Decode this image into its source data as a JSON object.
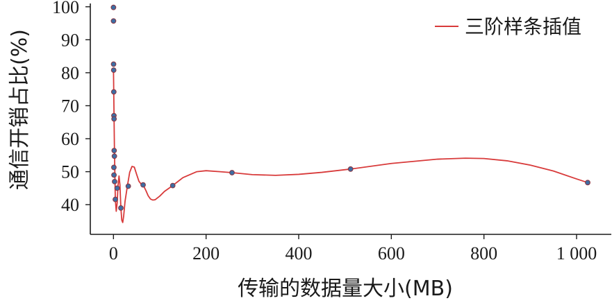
{
  "chart_data": {
    "type": "scatter",
    "xlabel": "传输的数据量大小(MB)",
    "ylabel": "通信开销占比(%)",
    "xlim": [
      -50,
      1075
    ],
    "ylim": [
      31,
      101
    ],
    "x_ticks": [
      0,
      200,
      400,
      600,
      800,
      1000
    ],
    "x_tick_labels": [
      "0",
      "200",
      "400",
      "600",
      "800",
      "1 000"
    ],
    "y_ticks": [
      40,
      50,
      60,
      70,
      80,
      90,
      100
    ],
    "y_tick_labels": [
      "40",
      "50",
      "60",
      "70",
      "80",
      "90",
      "100"
    ],
    "grid": false,
    "legend_position": "top-right",
    "colors": {
      "curve": "#d83a3a",
      "point_fill": "#3d6ea3",
      "point_edge": "#8a3440",
      "axis": "#1a1a1a"
    },
    "points": [
      {
        "x": 0.0625,
        "y": 99.8
      },
      {
        "x": 0.125,
        "y": 95.7
      },
      {
        "x": 0.25,
        "y": 82.6
      },
      {
        "x": 0.5,
        "y": 80.8
      },
      {
        "x": 0.75,
        "y": 74.2
      },
      {
        "x": 1,
        "y": 67.0
      },
      {
        "x": 1.25,
        "y": 66.0
      },
      {
        "x": 1.5,
        "y": 56.4
      },
      {
        "x": 2,
        "y": 54.7
      },
      {
        "x": 0.9,
        "y": 51.3
      },
      {
        "x": 1.1,
        "y": 49.0
      },
      {
        "x": 2.5,
        "y": 47.0
      },
      {
        "x": 4,
        "y": 41.6
      },
      {
        "x": 8,
        "y": 45.0
      },
      {
        "x": 16,
        "y": 39.0
      },
      {
        "x": 32,
        "y": 45.6
      },
      {
        "x": 64,
        "y": 46.0
      },
      {
        "x": 128,
        "y": 45.8
      },
      {
        "x": 256,
        "y": 49.7
      },
      {
        "x": 512,
        "y": 50.8
      },
      {
        "x": 1024,
        "y": 46.7
      }
    ],
    "series": [
      {
        "name": "三阶样条插值",
        "kind": "line",
        "x": [
          0,
          2,
          4,
          6,
          8,
          10,
          12,
          14,
          16,
          18,
          20,
          22,
          25,
          30,
          35,
          40,
          45,
          50,
          55,
          60,
          64,
          70,
          75,
          80,
          85,
          90,
          100,
          110,
          128,
          150,
          180,
          200,
          230,
          256,
          300,
          350,
          400,
          450,
          512,
          600,
          700,
          760,
          800,
          850,
          900,
          950,
          1000,
          1024
        ],
        "y": [
          81.5,
          58,
          41.6,
          38,
          40.5,
          46,
          48.7,
          46,
          39,
          35.3,
          34.6,
          36.5,
          41,
          45.6,
          49.8,
          51.6,
          51.4,
          49.2,
          47.1,
          46.2,
          46.0,
          44.3,
          42.7,
          41.7,
          41.4,
          41.5,
          42.6,
          44.0,
          45.8,
          48.2,
          50.0,
          50.3,
          50.0,
          49.7,
          49.1,
          48.9,
          49.2,
          49.8,
          50.8,
          52.5,
          53.8,
          54.1,
          54.0,
          53.3,
          52.0,
          50.2,
          47.8,
          46.7
        ]
      }
    ]
  }
}
